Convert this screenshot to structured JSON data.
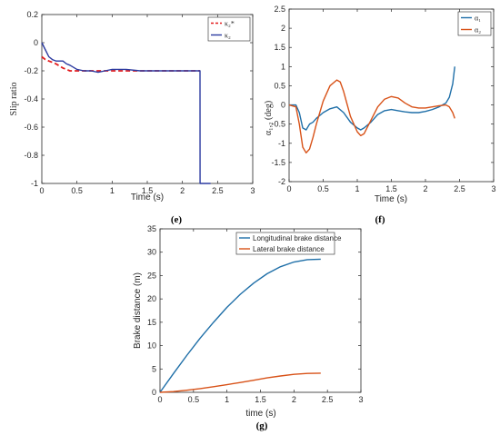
{
  "chart_data": [
    {
      "id": "e",
      "type": "line",
      "panel_label": "(e)",
      "xlabel": "Time (s)",
      "ylabel": "Slip ratio",
      "xlim": [
        0,
        3
      ],
      "ylim": [
        -1,
        0.2
      ],
      "xticks": [
        "0",
        "0.5",
        "1",
        "1.5",
        "2",
        "2.5",
        "3"
      ],
      "yticks": [
        "-1",
        "-0.8",
        "-0.6",
        "-0.4",
        "-0.2",
        "0",
        "0.2"
      ],
      "xtick_values": [
        0,
        0.5,
        1,
        1.5,
        2,
        2.5,
        3
      ],
      "ytick_values": [
        -1,
        -0.8,
        -0.6,
        -0.4,
        -0.2,
        0,
        0.2
      ],
      "grid": false,
      "legend_position": "top-right",
      "series": [
        {
          "name": "κ₂*",
          "color": "#e31a1c",
          "dash": true,
          "x": [
            0,
            0.05,
            0.1,
            0.15,
            0.2,
            0.3,
            0.4,
            0.5,
            0.6,
            0.8,
            1.0,
            1.5,
            2.0,
            2.25
          ],
          "y": [
            -0.1,
            -0.12,
            -0.13,
            -0.14,
            -0.15,
            -0.18,
            -0.2,
            -0.2,
            -0.2,
            -0.2,
            -0.2,
            -0.2,
            -0.2,
            -0.2
          ]
        },
        {
          "name": "κ₂",
          "color": "#2b3aa0",
          "dash": false,
          "x": [
            0,
            0.05,
            0.1,
            0.15,
            0.2,
            0.25,
            0.3,
            0.35,
            0.4,
            0.5,
            0.6,
            0.7,
            0.8,
            0.9,
            1.0,
            1.1,
            1.2,
            1.4,
            1.6,
            1.8,
            2.0,
            2.2,
            2.25,
            2.251,
            2.3,
            2.4
          ],
          "y": [
            0,
            -0.05,
            -0.1,
            -0.12,
            -0.13,
            -0.13,
            -0.13,
            -0.15,
            -0.16,
            -0.19,
            -0.2,
            -0.2,
            -0.21,
            -0.2,
            -0.19,
            -0.19,
            -0.19,
            -0.2,
            -0.2,
            -0.2,
            -0.2,
            -0.2,
            -0.2,
            -1.0,
            -1.0,
            -1.0
          ]
        }
      ]
    },
    {
      "id": "f",
      "type": "line",
      "panel_label": "(f)",
      "xlabel": "Time (s)",
      "ylabel": "α₁,₂ (deg)",
      "xlim": [
        0,
        3
      ],
      "ylim": [
        -2,
        2.5
      ],
      "xticks": [
        "0",
        "0.5",
        "1",
        "1.5",
        "2",
        "2.5",
        "3"
      ],
      "yticks": [
        "-2",
        "-1.5",
        "-1",
        "-0.5",
        "0",
        "0.5",
        "1",
        "1.5",
        "2",
        "2.5"
      ],
      "xtick_values": [
        0,
        0.5,
        1,
        1.5,
        2,
        2.5,
        3
      ],
      "ytick_values": [
        -2,
        -1.5,
        -1,
        -0.5,
        0,
        0.5,
        1,
        1.5,
        2,
        2.5
      ],
      "grid": false,
      "legend_position": "top-right",
      "series": [
        {
          "name": "α₁",
          "color": "#1f6fa8",
          "x": [
            0,
            0.1,
            0.15,
            0.2,
            0.25,
            0.3,
            0.35,
            0.4,
            0.5,
            0.6,
            0.7,
            0.8,
            0.9,
            1.0,
            1.05,
            1.1,
            1.2,
            1.3,
            1.4,
            1.5,
            1.6,
            1.7,
            1.8,
            1.9,
            2.0,
            2.1,
            2.2,
            2.3,
            2.35,
            2.4,
            2.43
          ],
          "y": [
            0,
            0,
            -0.2,
            -0.6,
            -0.65,
            -0.5,
            -0.45,
            -0.35,
            -0.2,
            -0.1,
            -0.05,
            -0.2,
            -0.45,
            -0.6,
            -0.65,
            -0.6,
            -0.45,
            -0.25,
            -0.15,
            -0.12,
            -0.15,
            -0.18,
            -0.2,
            -0.2,
            -0.17,
            -0.12,
            -0.05,
            0.05,
            0.2,
            0.55,
            1.0
          ]
        },
        {
          "name": "α₂",
          "color": "#d85218",
          "x": [
            0,
            0.1,
            0.15,
            0.2,
            0.25,
            0.3,
            0.35,
            0.4,
            0.5,
            0.6,
            0.7,
            0.75,
            0.8,
            0.9,
            1.0,
            1.05,
            1.1,
            1.2,
            1.3,
            1.4,
            1.5,
            1.6,
            1.7,
            1.8,
            1.9,
            2.0,
            2.1,
            2.2,
            2.3,
            2.35,
            2.4,
            2.43
          ],
          "y": [
            0,
            -0.05,
            -0.5,
            -1.1,
            -1.25,
            -1.15,
            -0.85,
            -0.5,
            0.1,
            0.5,
            0.65,
            0.6,
            0.35,
            -0.3,
            -0.7,
            -0.8,
            -0.75,
            -0.4,
            -0.05,
            0.15,
            0.22,
            0.18,
            0.05,
            -0.05,
            -0.08,
            -0.08,
            -0.05,
            -0.02,
            0,
            -0.05,
            -0.2,
            -0.35
          ]
        }
      ]
    },
    {
      "id": "g",
      "type": "line",
      "panel_label": "(g)",
      "xlabel": "time (s)",
      "ylabel": "Brake distance (m)",
      "xlim": [
        0,
        3
      ],
      "ylim": [
        0,
        35
      ],
      "xticks": [
        "0",
        "0.5",
        "1",
        "1.5",
        "2",
        "2.5",
        "3"
      ],
      "yticks": [
        "0",
        "5",
        "10",
        "15",
        "20",
        "25",
        "30",
        "35"
      ],
      "xtick_values": [
        0,
        0.5,
        1,
        1.5,
        2,
        2.5,
        3
      ],
      "ytick_values": [
        0,
        5,
        10,
        15,
        20,
        25,
        30,
        35
      ],
      "grid": false,
      "legend_position": "top-left",
      "series": [
        {
          "name": "Longitudinal brake distance",
          "color": "#1f6fa8",
          "x": [
            0,
            0.2,
            0.4,
            0.6,
            0.8,
            1.0,
            1.2,
            1.4,
            1.6,
            1.8,
            2.0,
            2.2,
            2.4
          ],
          "y": [
            0,
            4.0,
            7.9,
            11.6,
            15.0,
            18.2,
            21.0,
            23.4,
            25.4,
            26.9,
            27.9,
            28.4,
            28.5
          ]
        },
        {
          "name": "Lateral brake distance",
          "color": "#d85218",
          "x": [
            0,
            0.2,
            0.4,
            0.6,
            0.8,
            1.0,
            1.2,
            1.4,
            1.6,
            1.8,
            2.0,
            2.2,
            2.4
          ],
          "y": [
            0,
            0.15,
            0.45,
            0.8,
            1.2,
            1.65,
            2.1,
            2.6,
            3.1,
            3.5,
            3.85,
            4.05,
            4.1
          ]
        }
      ]
    }
  ]
}
